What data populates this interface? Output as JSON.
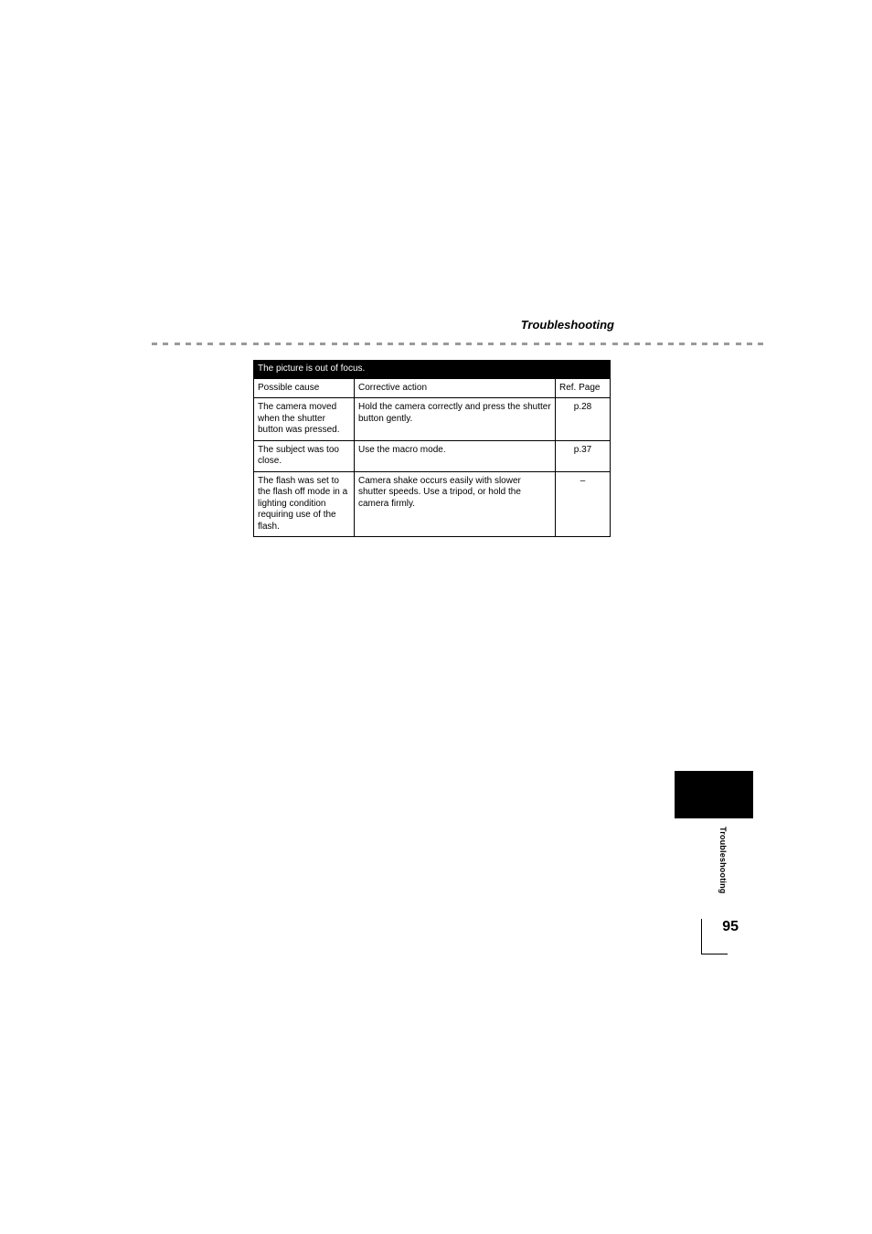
{
  "header": {
    "section_title": "Troubleshooting"
  },
  "dashed_rule": {
    "segments": 55,
    "color": "#9a9a9a"
  },
  "table": {
    "banner_text": "The picture is out of focus.",
    "columns": [
      {
        "label": "Possible cause"
      },
      {
        "label": "Corrective action"
      },
      {
        "label": "Ref. Page"
      }
    ],
    "rows": [
      {
        "cause": "The camera moved when the shutter button was pressed.",
        "action": "Hold the camera correctly and press the shutter button gently.",
        "ref": "p.28"
      },
      {
        "cause": "The subject was too close.",
        "action": "Use the macro mode.",
        "ref": "p.37"
      },
      {
        "cause": "The flash was set to the flash off mode in a lighting condition requiring use of the flash.",
        "action": "Camera shake occurs easily with slower shutter speeds. Use a tripod, or hold the camera firmly.",
        "ref": "–"
      }
    ]
  },
  "side": {
    "label": "Troubleshooting",
    "tab_color": "#000000"
  },
  "page_number": "95"
}
